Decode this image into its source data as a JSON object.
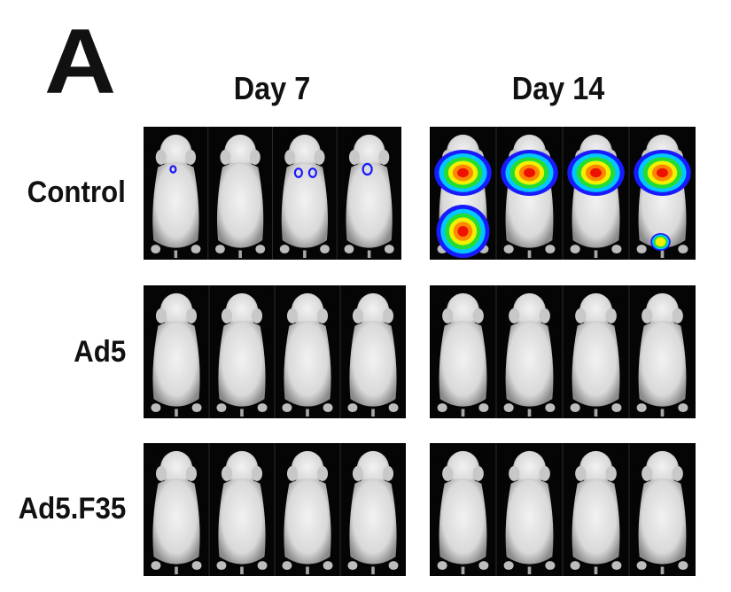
{
  "figure": {
    "panel_letter": "A",
    "column_headers": [
      "Day 7",
      "Day 14"
    ],
    "row_labels": [
      "Control",
      "Ad5",
      "Ad5.F35"
    ]
  },
  "colors": {
    "background": "#ffffff",
    "panel_background": "#050505",
    "mouse_body": "#d9d9d9",
    "signal_scale": [
      "#1a1aff",
      "#00c8ff",
      "#22dd33",
      "#f0f000",
      "#ff8800",
      "#ee1100"
    ]
  },
  "signal": {
    "day7_control": "weak blue foci in mice 1, 3, 4",
    "day14_control": "strong red-to-blue signal over upper body of all four mice; lower-body signal in mice 1 and 4"
  }
}
